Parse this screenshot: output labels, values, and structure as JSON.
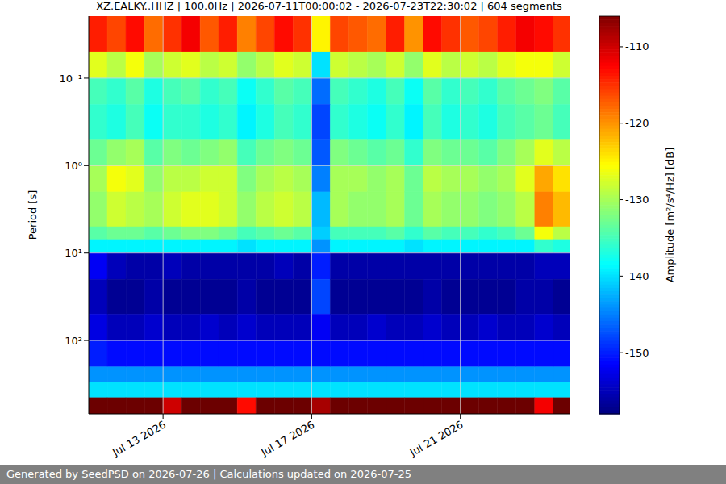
{
  "chart_data": {
    "type": "heatmap",
    "title": "XZ.EALKY..HHZ | 100.0Hz | 2026-07-11T00:00:02 - 2026-07-23T22:30:02 | 604 segments",
    "y_label": "Period [s]",
    "colorbar_label": "Amplitude [m²/s⁴/Hz] [dB]",
    "footer": "Generated by SeedPSD on 2026-07-26 | Calculations updated on 2026-07-25",
    "log": "y",
    "grid": true,
    "xlim": [
      "2026-07-11T00:00:02",
      "2026-07-23T22:30:02"
    ],
    "xticks": [
      {
        "value": "2026-07-13T00:00:00",
        "label": "Jul 13 2026"
      },
      {
        "value": "2026-07-17T00:00:00",
        "label": "Jul 17 2026"
      },
      {
        "value": "2026-07-21T00:00:00",
        "label": "Jul 21 2026"
      }
    ],
    "ylim": [
      0.0195,
      690
    ],
    "yticks": [
      {
        "value": 0.1,
        "label": "10⁻¹"
      },
      {
        "value": 1,
        "label": "10⁰"
      },
      {
        "value": 10,
        "label": "10¹"
      },
      {
        "value": 100,
        "label": "10²"
      }
    ],
    "colorbar_range": [
      -158,
      -106
    ],
    "colorbar_ticks": [
      -110,
      -120,
      -130,
      -140,
      -150
    ],
    "x_edges": [
      "2026-07-11T00:00:00",
      "2026-07-11T12:00:00",
      "2026-07-12T00:00:00",
      "2026-07-12T12:00:00",
      "2026-07-13T00:00:00",
      "2026-07-13T12:00:00",
      "2026-07-14T00:00:00",
      "2026-07-14T12:00:00",
      "2026-07-15T00:00:00",
      "2026-07-15T12:00:00",
      "2026-07-16T00:00:00",
      "2026-07-16T12:00:00",
      "2026-07-17T00:00:00",
      "2026-07-17T12:00:00",
      "2026-07-18T00:00:00",
      "2026-07-18T12:00:00",
      "2026-07-19T00:00:00",
      "2026-07-19T12:00:00",
      "2026-07-20T00:00:00",
      "2026-07-20T12:00:00",
      "2026-07-21T00:00:00",
      "2026-07-21T12:00:00",
      "2026-07-22T00:00:00",
      "2026-07-22T12:00:00",
      "2026-07-23T00:00:00",
      "2026-07-23T12:00:00",
      "2026-07-24T00:00:00"
    ],
    "y_edges": [
      0.0195,
      0.05,
      0.1,
      0.2,
      0.5,
      1,
      2,
      5,
      7,
      10,
      20,
      50,
      100,
      200,
      300,
      450,
      690
    ],
    "cells": [
      [
        -114,
        -116,
        -113,
        -118,
        -115,
        -112,
        -117,
        -114,
        -119,
        -116,
        -113,
        -115,
        -125,
        -116,
        -117,
        -118,
        -114,
        -120,
        -113,
        -115,
        -117,
        -116,
        -114,
        -112,
        -113,
        -115
      ],
      [
        -127,
        -129,
        -126,
        -130,
        -128,
        -127,
        -129,
        -128,
        -131,
        -129,
        -127,
        -128,
        -140,
        -128,
        -129,
        -130,
        -128,
        -131,
        -127,
        -129,
        -128,
        -129,
        -127,
        -126,
        -126,
        -128
      ],
      [
        -135,
        -136,
        -134,
        -137,
        -135,
        -134,
        -136,
        -135,
        -138,
        -136,
        -134,
        -135,
        -146,
        -135,
        -136,
        -137,
        -135,
        -138,
        -134,
        -136,
        -135,
        -136,
        -134,
        -133,
        -132,
        -134
      ],
      [
        -136,
        -137,
        -135,
        -138,
        -136,
        -136,
        -137,
        -136,
        -139,
        -137,
        -135,
        -136,
        -148,
        -136,
        -137,
        -138,
        -136,
        -139,
        -135,
        -137,
        -136,
        -137,
        -135,
        -134,
        -133,
        -135
      ],
      [
        -133,
        -131,
        -130,
        -134,
        -132,
        -133,
        -132,
        -131,
        -135,
        -133,
        -132,
        -133,
        -147,
        -132,
        -133,
        -134,
        -133,
        -136,
        -132,
        -133,
        -133,
        -134,
        -132,
        -130,
        -127,
        -129
      ],
      [
        -130,
        -126,
        -127,
        -131,
        -129,
        -129,
        -128,
        -128,
        -132,
        -130,
        -129,
        -130,
        -145,
        -130,
        -130,
        -131,
        -130,
        -133,
        -129,
        -130,
        -130,
        -131,
        -130,
        -127,
        -121,
        -124
      ],
      [
        -131,
        -128,
        -129,
        -130,
        -128,
        -127,
        -127,
        -128,
        -131,
        -129,
        -128,
        -129,
        -142,
        -130,
        -131,
        -131,
        -130,
        -133,
        -130,
        -131,
        -131,
        -132,
        -131,
        -129,
        -119,
        -122
      ],
      [
        -134,
        -133,
        -133,
        -134,
        -133,
        -132,
        -132,
        -133,
        -135,
        -134,
        -133,
        -134,
        -141,
        -135,
        -135,
        -135,
        -134,
        -136,
        -134,
        -135,
        -135,
        -136,
        -135,
        -133,
        -126,
        -129
      ],
      [
        -139,
        -139,
        -139,
        -139,
        -139,
        -139,
        -139,
        -139,
        -140,
        -139,
        -139,
        -139,
        -144,
        -139,
        -139,
        -139,
        -139,
        -140,
        -139,
        -139,
        -139,
        -139,
        -139,
        -139,
        -136,
        -137
      ],
      [
        -152,
        -155,
        -156,
        -156,
        -155,
        -156,
        -156,
        -156,
        -156,
        -156,
        -155,
        -156,
        -150,
        -156,
        -156,
        -156,
        -156,
        -156,
        -156,
        -156,
        -156,
        -156,
        -156,
        -156,
        -155,
        -155
      ],
      [
        -155,
        -157,
        -157,
        -156,
        -157,
        -157,
        -157,
        -157,
        -156,
        -157,
        -157,
        -157,
        -148,
        -157,
        -157,
        -157,
        -157,
        -157,
        -156,
        -157,
        -157,
        -157,
        -157,
        -156,
        -156,
        -157
      ],
      [
        -153,
        -155,
        -155,
        -154,
        -155,
        -155,
        -154,
        -155,
        -154,
        -155,
        -155,
        -155,
        -152,
        -155,
        -155,
        -154,
        -155,
        -155,
        -154,
        -155,
        -155,
        -154,
        -155,
        -155,
        -154,
        -155
      ],
      [
        -150,
        -151,
        -151,
        -151,
        -151,
        -151,
        -151,
        -151,
        -151,
        -151,
        -151,
        -151,
        -151,
        -151,
        -151,
        -151,
        -151,
        -151,
        -151,
        -151,
        -151,
        -151,
        -151,
        -151,
        -151,
        -151
      ],
      [
        -144,
        -144,
        -144,
        -144,
        -144,
        -144,
        -144,
        -144,
        -144,
        -144,
        -144,
        -144,
        -144,
        -144,
        -144,
        -144,
        -144,
        -144,
        -144,
        -144,
        -144,
        -144,
        -144,
        -144,
        -144,
        -144
      ],
      [
        -140,
        -140,
        -140,
        -140,
        -140,
        -140,
        -140,
        -140,
        -140,
        -140,
        -140,
        -140,
        -140,
        -140,
        -140,
        -140,
        -140,
        -140,
        -140,
        -140,
        -140,
        -140,
        -140,
        -140,
        -140,
        -140
      ],
      [
        -105,
        -105,
        -105,
        -105,
        -110,
        -105,
        -105,
        -105,
        -113,
        -105,
        -105,
        -105,
        -108,
        -105,
        -105,
        -105,
        -105,
        -105,
        -105,
        -105,
        -105,
        -105,
        -105,
        -105,
        -112,
        -105
      ]
    ]
  }
}
